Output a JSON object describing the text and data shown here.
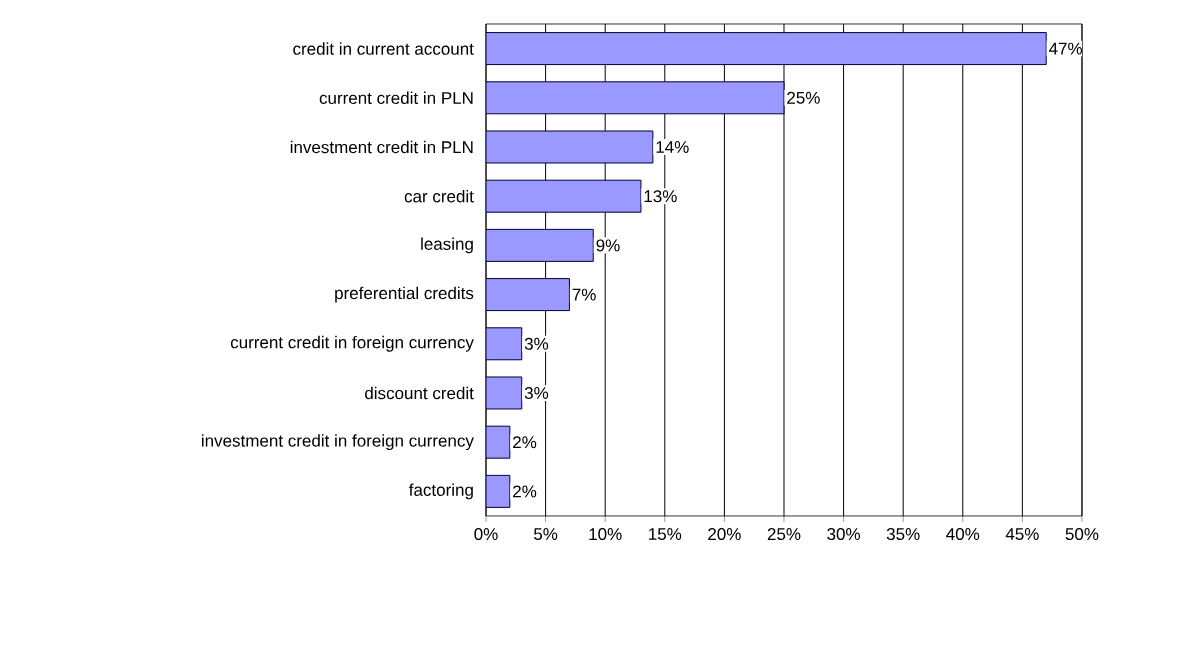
{
  "chart_data": {
    "type": "bar",
    "orientation": "horizontal",
    "categories": [
      "credit in current account",
      "current credit in PLN",
      "investment credit in PLN",
      "car credit",
      "leasing",
      "preferential credits",
      "current credit in foreign currency",
      "discount credit",
      "investment credit in foreign currency",
      "factoring"
    ],
    "values": [
      47,
      25,
      14,
      13,
      9,
      7,
      3,
      3,
      2,
      2
    ],
    "value_labels": [
      "47%",
      "25%",
      "14%",
      "13%",
      "9%",
      "7%",
      "3%",
      "3%",
      "2%",
      "2%"
    ],
    "color": "#9999ff",
    "xlim": [
      0,
      50
    ],
    "xticks": [
      {
        "value": 0,
        "label": "0%"
      },
      {
        "value": 5,
        "label": "5%"
      },
      {
        "value": 10,
        "label": "10%"
      },
      {
        "value": 15,
        "label": "15%"
      },
      {
        "value": 20,
        "label": "20%"
      },
      {
        "value": 25,
        "label": "25%"
      },
      {
        "value": 30,
        "label": "30%"
      },
      {
        "value": 35,
        "label": "35%"
      },
      {
        "value": 40,
        "label": "40%"
      },
      {
        "value": 45,
        "label": "45%"
      },
      {
        "value": 50,
        "label": "50%"
      }
    ],
    "grid": "x"
  }
}
